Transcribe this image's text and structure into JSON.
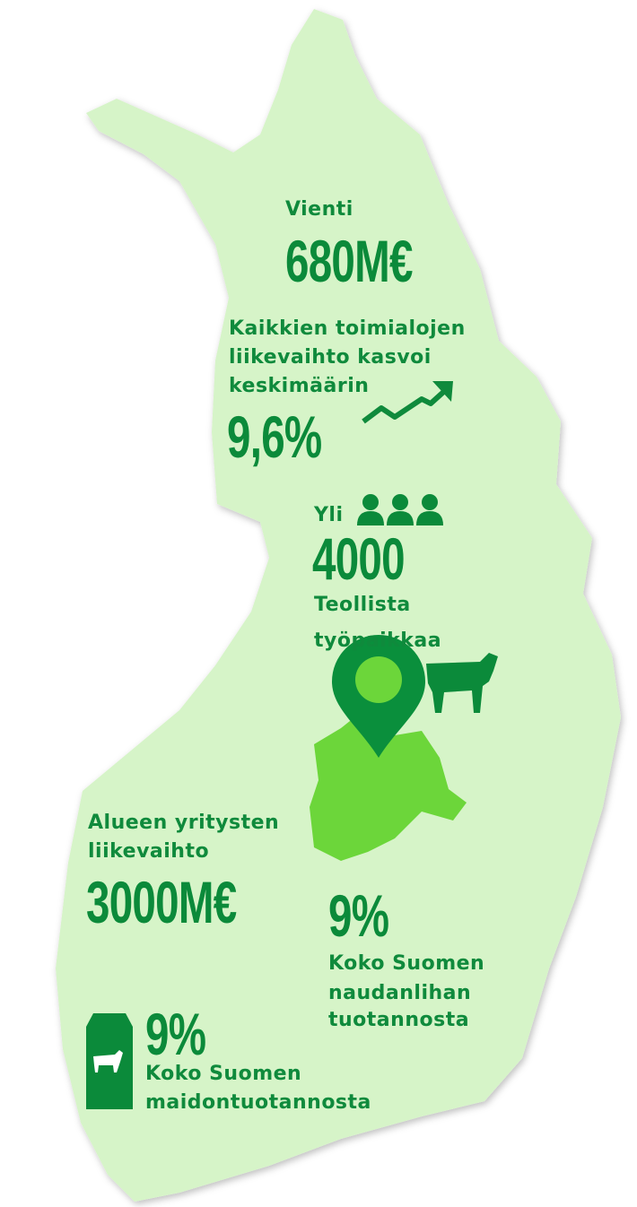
{
  "stats": [
    {
      "label": "Vienti",
      "value": "680M€"
    },
    {
      "label_lines": [
        "Kaikkien toimialojen",
        "liikevaihto kasvoi",
        "keskimäärin"
      ],
      "value": "9,6%"
    },
    {
      "prefix": "Yli",
      "value": "4000",
      "label_lines": [
        "Teollista",
        "työpaikkaa"
      ]
    },
    {
      "label_lines": [
        "Alueen yritysten",
        "liikevaihto"
      ],
      "value": "3000M€"
    },
    {
      "value": "9%",
      "label_lines": [
        "Koko Suomen",
        "naudanlihan",
        "tuotannosta"
      ]
    },
    {
      "value": "9%",
      "label_lines": [
        "Koko Suomen",
        "maidontuotannosta"
      ]
    }
  ]
}
